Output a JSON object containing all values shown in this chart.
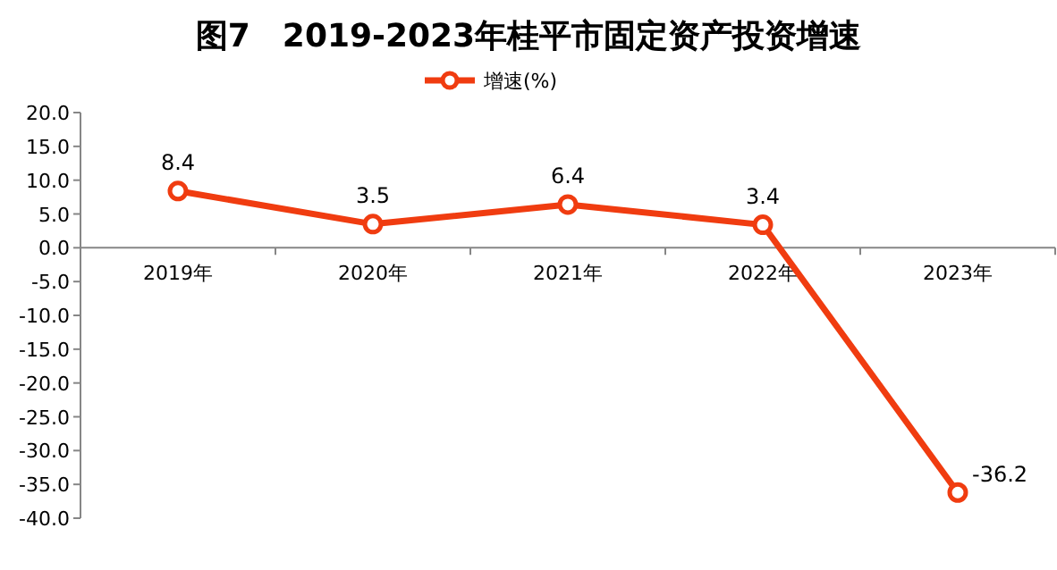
{
  "chart_data": {
    "type": "line",
    "title": "图7　2019-2023年桂平市固定资产投资增速",
    "categories": [
      "2019年",
      "2020年",
      "2021年",
      "2022年",
      "2023年"
    ],
    "series": [
      {
        "name": "增速(%)",
        "color": "#f03c10",
        "values": [
          8.4,
          3.5,
          6.4,
          3.4,
          -36.2
        ]
      }
    ],
    "ylim": [
      -40,
      20
    ],
    "yticks": [
      {
        "value": 20,
        "label": "20.0"
      },
      {
        "value": 15,
        "label": "15.0"
      },
      {
        "value": 10,
        "label": "10.0"
      },
      {
        "value": 5,
        "label": "5.0"
      },
      {
        "value": 0,
        "label": "0.0"
      },
      {
        "value": -5,
        "label": "-5.0"
      },
      {
        "value": -10,
        "label": "-10.0"
      },
      {
        "value": -15,
        "label": "-15.0"
      },
      {
        "value": -20,
        "label": "-20.0"
      },
      {
        "value": -25,
        "label": "-25.0"
      },
      {
        "value": -30,
        "label": "-30.0"
      },
      {
        "value": -35,
        "label": "-35.0"
      },
      {
        "value": -40,
        "label": "-40.0"
      }
    ],
    "legend": "top",
    "marker": "circle",
    "data_labels": true
  }
}
